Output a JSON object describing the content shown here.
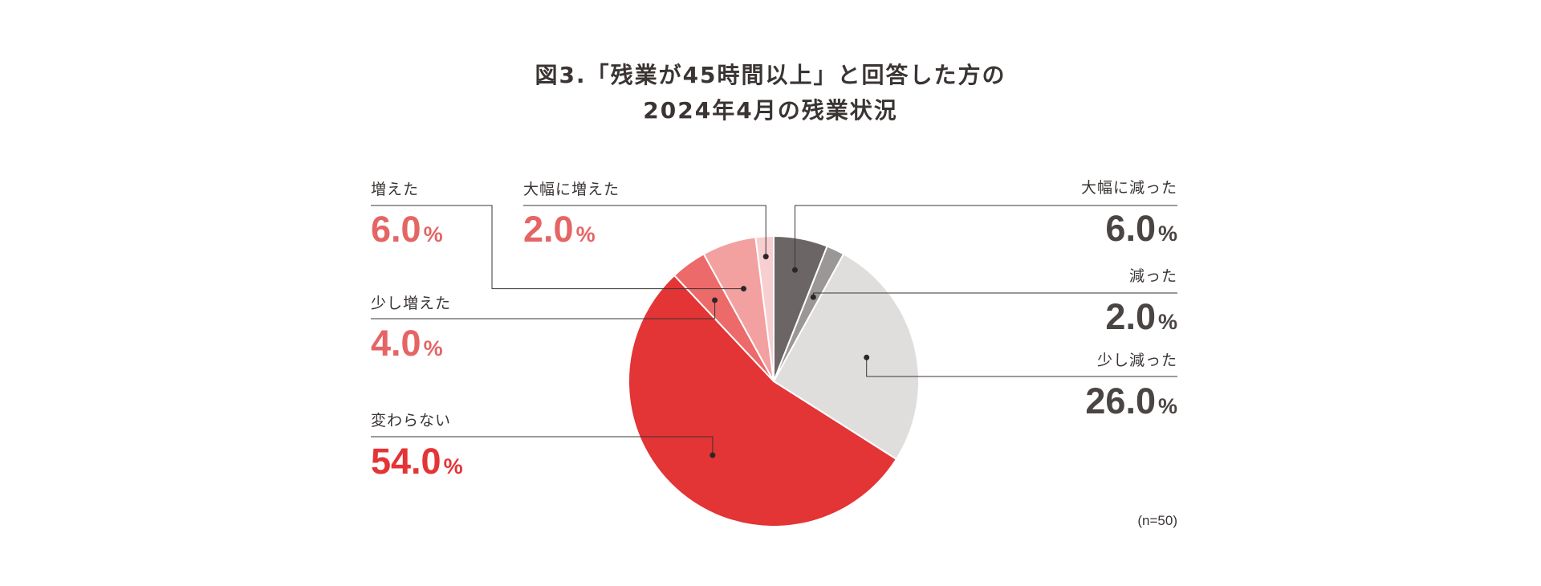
{
  "chart_data": {
    "type": "pie",
    "title": "図3.「残業が45時間以上」と回答した方の",
    "subtitle": "2024年4月の残業状況",
    "unit": "%",
    "sample_note": "(n=50)",
    "slices": [
      {
        "label": "大幅に減った",
        "value": 6.0,
        "display": "6.0",
        "color": "#6b6665",
        "text_color": "#4a4543"
      },
      {
        "label": "減った",
        "value": 2.0,
        "display": "2.0",
        "color": "#9b9796",
        "text_color": "#4a4543"
      },
      {
        "label": "少し減った",
        "value": 26.0,
        "display": "26.0",
        "color": "#e0dedd",
        "text_color": "#4a4543"
      },
      {
        "label": "変わらない",
        "value": 54.0,
        "display": "54.0",
        "color": "#e33436",
        "text_color": "#e33436"
      },
      {
        "label": "少し増えた",
        "value": 4.0,
        "display": "4.0",
        "color": "#ec6a69",
        "text_color": "#e56565"
      },
      {
        "label": "増えた",
        "value": 6.0,
        "display": "6.0",
        "color": "#f3a0a0",
        "text_color": "#e56565"
      },
      {
        "label": "大幅に増えた",
        "value": 2.0,
        "display": "2.0",
        "color": "#f8cfd0",
        "text_color": "#e56565"
      }
    ]
  }
}
